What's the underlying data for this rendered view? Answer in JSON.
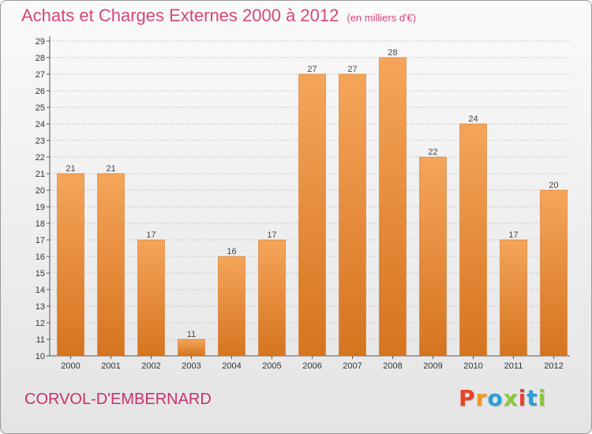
{
  "header": {
    "title": "Achats et Charges Externes 2000 à 2012",
    "subtitle": "(en milliers d'€)"
  },
  "footer": {
    "commune": "CORVOL-D'EMBERNARD",
    "logo_text": "Proxiti",
    "logo_colors": [
      "#e8432b",
      "#f29a1f",
      "#2a9fd8",
      "#8cc63f",
      "#e8432b",
      "#2a9fd8",
      "#8cc63f"
    ]
  },
  "colors": {
    "bar_top": "#f5a55a",
    "bar_bottom": "#d6741f",
    "title": "#d7457d"
  },
  "chart_data": {
    "type": "bar",
    "categories": [
      "2000",
      "2001",
      "2002",
      "2003",
      "2004",
      "2005",
      "2006",
      "2007",
      "2008",
      "2009",
      "2010",
      "2011",
      "2012"
    ],
    "values": [
      21,
      21,
      17,
      11,
      16,
      17,
      27,
      27,
      28,
      22,
      24,
      17,
      20
    ],
    "ylim": [
      10,
      29
    ],
    "yticks": [
      10,
      11,
      12,
      13,
      14,
      15,
      16,
      17,
      18,
      19,
      20,
      21,
      22,
      23,
      24,
      25,
      26,
      27,
      28,
      29
    ],
    "grid": true,
    "data_labels": true
  }
}
